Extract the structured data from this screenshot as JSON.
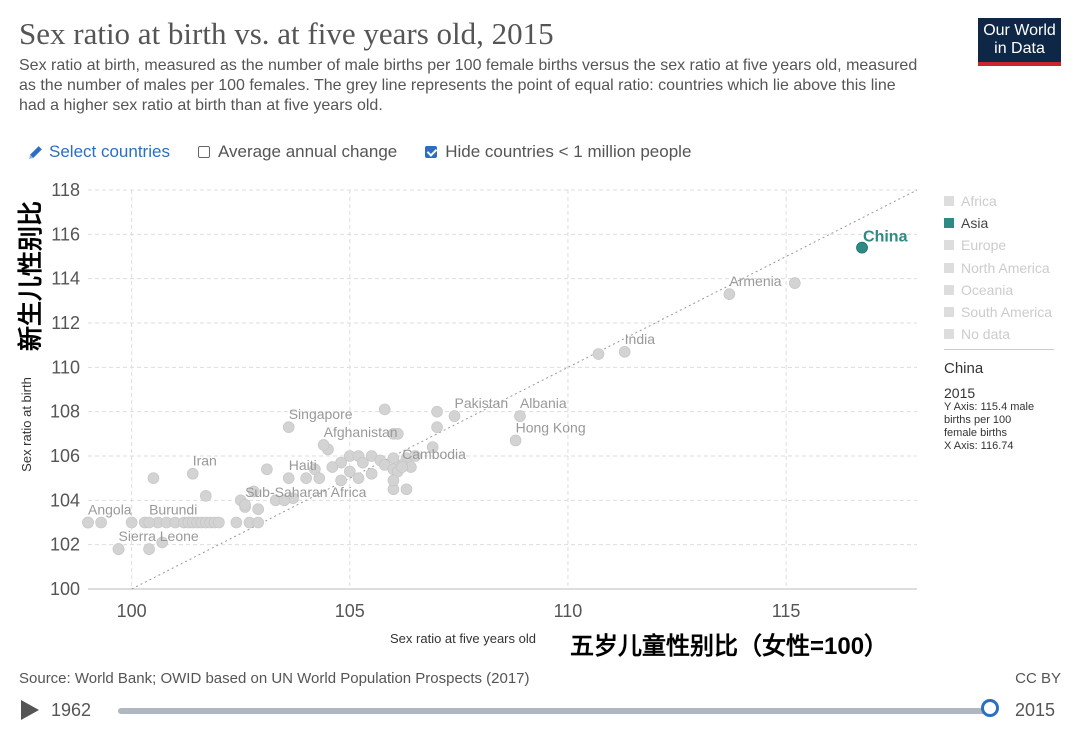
{
  "header": {
    "title": "Sex ratio at birth vs. at five years old, 2015",
    "subtitle": "Sex ratio at birth, measured as the number of male births per 100 female births versus the sex ratio at five years old, measured as the number of males per 100 females. The grey line represents the point of equal ratio: countries which lie above this line had a higher sex ratio at birth than at five years old.",
    "logo_line1": "Our World",
    "logo_line2": "in Data"
  },
  "controls": {
    "select_countries": "Select countries",
    "average_annual_change": "Average annual change",
    "average_annual_change_checked": false,
    "hide_small": "Hide countries < 1 million people",
    "hide_small_checked": true
  },
  "overlay": {
    "y_label_cn": "新生儿性别比",
    "x_label_cn": "五岁儿童性别比（女性=100）"
  },
  "legend": {
    "items": [
      "Africa",
      "Asia",
      "Europe",
      "North America",
      "Oceania",
      "South America",
      "No data"
    ],
    "active": "Asia"
  },
  "tooltip": {
    "country": "China",
    "year": "2015",
    "lines": [
      "Y Axis: 115.4 male",
      "births per 100",
      "female births",
      "X Axis: 116.74"
    ]
  },
  "footer": {
    "source": "Source: World Bank; OWID based on UN World Population Prospects (2017)",
    "license": "CC BY"
  },
  "timeline": {
    "start": "1962",
    "end": "2015"
  },
  "chart_data": {
    "type": "scatter",
    "xlabel": "Sex ratio at five years old",
    "ylabel": "Sex ratio at birth",
    "xlim": [
      99,
      118
    ],
    "ylim": [
      100,
      118
    ],
    "xticks": [
      100,
      105,
      110,
      115
    ],
    "yticks": [
      100,
      102,
      104,
      106,
      108,
      110,
      112,
      114,
      116,
      118
    ],
    "grid": true,
    "reference_line": "y = x",
    "legend_position": "right",
    "highlight_color": "#2e8b84",
    "point_color": "#d3d3d3",
    "highlight": {
      "name": "China",
      "x": 116.74,
      "y": 115.4
    },
    "labels": [
      {
        "name": "Armenia",
        "x": 113.7,
        "y": 113.3
      },
      {
        "name": "India",
        "x": 111.3,
        "y": 110.7
      },
      {
        "name": "Pakistan",
        "x": 107.4,
        "y": 107.8
      },
      {
        "name": "Albania",
        "x": 108.9,
        "y": 107.8
      },
      {
        "name": "Singapore",
        "x": 103.6,
        "y": 107.3
      },
      {
        "name": "Hong Kong",
        "x": 108.8,
        "y": 106.7
      },
      {
        "name": "Afghanistan",
        "x": 104.4,
        "y": 106.5
      },
      {
        "name": "Cambodia",
        "x": 106.2,
        "y": 105.5
      },
      {
        "name": "Iran",
        "x": 101.4,
        "y": 105.2
      },
      {
        "name": "Haiti",
        "x": 103.6,
        "y": 105.0
      },
      {
        "name": "Sub-Saharan Africa",
        "x": 102.6,
        "y": 103.8
      },
      {
        "name": "Angola",
        "x": 99.0,
        "y": 103.0
      },
      {
        "name": "Burundi",
        "x": 100.4,
        "y": 103.0
      },
      {
        "name": "Sierra Leone",
        "x": 99.7,
        "y": 101.8
      }
    ],
    "points": [
      [
        115.2,
        113.8
      ],
      [
        110.7,
        110.6
      ],
      [
        107.0,
        108.0
      ],
      [
        105.8,
        108.1
      ],
      [
        107.0,
        107.3
      ],
      [
        106.0,
        107.0
      ],
      [
        106.1,
        107.0
      ],
      [
        106.9,
        106.4
      ],
      [
        104.5,
        106.3
      ],
      [
        105.0,
        106.0
      ],
      [
        105.2,
        106.0
      ],
      [
        105.5,
        106.0
      ],
      [
        105.7,
        105.8
      ],
      [
        106.0,
        105.9
      ],
      [
        106.3,
        105.9
      ],
      [
        106.5,
        106.0
      ],
      [
        104.8,
        105.7
      ],
      [
        105.3,
        105.7
      ],
      [
        105.8,
        105.6
      ],
      [
        106.2,
        105.6
      ],
      [
        104.2,
        105.4
      ],
      [
        104.6,
        105.5
      ],
      [
        105.0,
        105.3
      ],
      [
        105.5,
        105.2
      ],
      [
        106.0,
        105.4
      ],
      [
        106.1,
        105.3
      ],
      [
        106.4,
        105.5
      ],
      [
        103.1,
        105.4
      ],
      [
        100.5,
        105.0
      ],
      [
        104.0,
        105.0
      ],
      [
        104.3,
        105.0
      ],
      [
        104.8,
        104.9
      ],
      [
        105.2,
        105.0
      ],
      [
        106.0,
        104.5
      ],
      [
        106.3,
        104.5
      ],
      [
        106.0,
        104.9
      ],
      [
        101.7,
        104.2
      ],
      [
        102.8,
        104.4
      ],
      [
        103.3,
        104.0
      ],
      [
        103.7,
        104.1
      ],
      [
        102.5,
        104.0
      ],
      [
        102.6,
        103.7
      ],
      [
        102.9,
        103.6
      ],
      [
        103.5,
        104.0
      ],
      [
        99.0,
        103.0
      ],
      [
        99.3,
        103.0
      ],
      [
        100.0,
        103.0
      ],
      [
        100.3,
        103.0
      ],
      [
        100.6,
        103.0
      ],
      [
        100.8,
        103.0
      ],
      [
        101.0,
        103.0
      ],
      [
        101.2,
        103.0
      ],
      [
        101.3,
        103.0
      ],
      [
        101.4,
        103.0
      ],
      [
        101.5,
        103.0
      ],
      [
        101.6,
        103.0
      ],
      [
        101.7,
        103.0
      ],
      [
        101.8,
        103.0
      ],
      [
        101.9,
        103.0
      ],
      [
        102.0,
        103.0
      ],
      [
        102.4,
        103.0
      ],
      [
        102.7,
        103.0
      ],
      [
        102.9,
        103.0
      ],
      [
        99.7,
        101.8
      ],
      [
        100.4,
        101.8
      ],
      [
        100.7,
        102.1
      ]
    ]
  }
}
